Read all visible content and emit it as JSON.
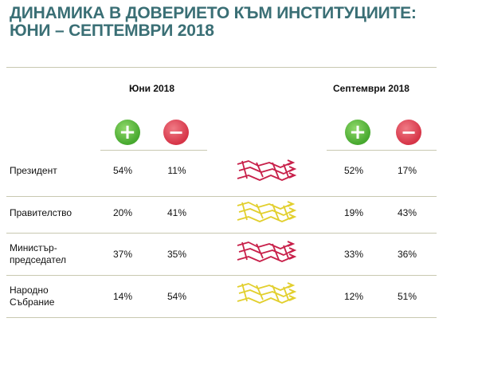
{
  "title": {
    "line1": "ДИНАМИКА В ДОВЕРИЕТО КЪМ ИНСТИТУЦИИТЕ:",
    "line2": "ЮНИ – СЕПТЕМВРИ 2018"
  },
  "periods": {
    "june": "Юни 2018",
    "september": "Септември 2018"
  },
  "icons": {
    "positive": "plus-icon",
    "negative": "minus-icon"
  },
  "colors": {
    "title": "#3a6f75",
    "positive": "#46a82e",
    "negative": "#d63447",
    "trend_red": "#c8204a",
    "trend_yellow": "#e2cf2e"
  },
  "chart_data": {
    "type": "table",
    "columns": [
      "Юни 2018 +",
      "Юни 2018 −",
      "Септември 2018 +",
      "Септември 2018 −"
    ],
    "rows": [
      {
        "label": "Президент",
        "june_pos": "54%",
        "june_neg": "11%",
        "sep_pos": "52%",
        "sep_neg": "17%",
        "trend_color": "red"
      },
      {
        "label": "Правителство",
        "june_pos": "20%",
        "june_neg": "41%",
        "sep_pos": "19%",
        "sep_neg": "43%",
        "trend_color": "yellow"
      },
      {
        "label": "Министър-\nпредседател",
        "june_pos": "37%",
        "june_neg": "35%",
        "sep_pos": "33%",
        "sep_neg": "36%",
        "trend_color": "red"
      },
      {
        "label": "Народно\nСъбрание",
        "june_pos": "14%",
        "june_neg": "54%",
        "sep_pos": "12%",
        "sep_neg": "51%",
        "trend_color": "yellow"
      }
    ]
  }
}
